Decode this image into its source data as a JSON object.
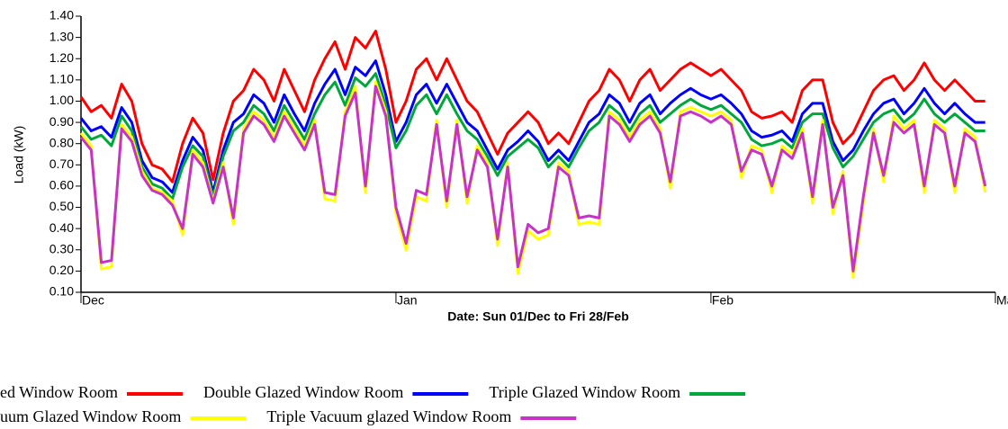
{
  "chart_data": {
    "type": "line",
    "ylabel": "Load (kW)",
    "xlabel": "Date: Sun 01/Dec to Fri 28/Feb",
    "x": [
      0,
      1,
      2,
      3,
      4,
      5,
      6,
      7,
      8,
      9,
      10,
      11,
      12,
      13,
      14,
      15,
      16,
      17,
      18,
      19,
      20,
      21,
      22,
      23,
      24,
      25,
      26,
      27,
      28,
      29,
      30,
      31,
      32,
      33,
      34,
      35,
      36,
      37,
      38,
      39,
      40,
      41,
      42,
      43,
      44,
      45,
      46,
      47,
      48,
      49,
      50,
      51,
      52,
      53,
      54,
      55,
      56,
      57,
      58,
      59,
      60,
      61,
      62,
      63,
      64,
      65,
      66,
      67,
      68,
      69,
      70,
      71,
      72,
      73,
      74,
      75,
      76,
      77,
      78,
      79,
      80,
      81,
      82,
      83,
      84,
      85,
      86,
      87,
      88,
      89
    ],
    "xlim": [
      0,
      90
    ],
    "xticks": [
      {
        "value": 0,
        "label": "Dec"
      },
      {
        "value": 31,
        "label": "Jan"
      },
      {
        "value": 62,
        "label": "Feb"
      },
      {
        "value": 90,
        "label": "Mar"
      }
    ],
    "ylim": [
      0.1,
      1.4
    ],
    "yticks": [
      {
        "value": 0.1,
        "label": "0.10"
      },
      {
        "value": 0.2,
        "label": "0.20"
      },
      {
        "value": 0.3,
        "label": "0.30"
      },
      {
        "value": 0.4,
        "label": "0.40"
      },
      {
        "value": 0.5,
        "label": "0.50"
      },
      {
        "value": 0.6,
        "label": "0.60"
      },
      {
        "value": 0.7,
        "label": "0.70"
      },
      {
        "value": 0.8,
        "label": "0.80"
      },
      {
        "value": 0.9,
        "label": "0.90"
      },
      {
        "value": 1.0,
        "label": "1.00"
      },
      {
        "value": 1.1,
        "label": "1.10"
      },
      {
        "value": 1.2,
        "label": "1.20"
      },
      {
        "value": 1.3,
        "label": "1.30"
      },
      {
        "value": 1.4,
        "label": "1.40"
      }
    ],
    "grid": false,
    "series": [
      {
        "name": "ed Window Room",
        "color": "#ff0000",
        "values": [
          1.02,
          0.95,
          0.98,
          0.92,
          1.08,
          1.0,
          0.8,
          0.7,
          0.68,
          0.62,
          0.8,
          0.92,
          0.85,
          0.63,
          0.85,
          1.0,
          1.05,
          1.15,
          1.1,
          1.0,
          1.15,
          1.05,
          0.95,
          1.1,
          1.2,
          1.28,
          1.15,
          1.3,
          1.25,
          1.33,
          1.15,
          0.9,
          1.0,
          1.15,
          1.2,
          1.1,
          1.2,
          1.1,
          1.0,
          0.95,
          0.85,
          0.75,
          0.85,
          0.9,
          0.95,
          0.9,
          0.8,
          0.85,
          0.8,
          0.9,
          1.0,
          1.05,
          1.15,
          1.1,
          1.0,
          1.1,
          1.15,
          1.05,
          1.1,
          1.15,
          1.18,
          1.15,
          1.12,
          1.15,
          1.1,
          1.05,
          0.95,
          0.92,
          0.93,
          0.95,
          0.9,
          1.05,
          1.1,
          1.1,
          0.9,
          0.8,
          0.85,
          0.95,
          1.05,
          1.1,
          1.12,
          1.05,
          1.1,
          1.18,
          1.1,
          1.05,
          1.1,
          1.05,
          1.0,
          1.0
        ]
      },
      {
        "name": "Double Glazed Window Room",
        "color": "#0000ff",
        "values": [
          0.92,
          0.86,
          0.88,
          0.83,
          0.97,
          0.9,
          0.72,
          0.64,
          0.62,
          0.57,
          0.72,
          0.83,
          0.77,
          0.57,
          0.77,
          0.9,
          0.94,
          1.03,
          0.99,
          0.9,
          1.03,
          0.94,
          0.86,
          0.99,
          1.08,
          1.15,
          1.03,
          1.16,
          1.12,
          1.19,
          1.03,
          0.81,
          0.9,
          1.03,
          1.08,
          0.99,
          1.08,
          0.99,
          0.9,
          0.86,
          0.77,
          0.68,
          0.77,
          0.81,
          0.86,
          0.81,
          0.72,
          0.77,
          0.72,
          0.81,
          0.9,
          0.94,
          1.03,
          0.99,
          0.9,
          0.99,
          1.03,
          0.94,
          0.99,
          1.03,
          1.06,
          1.03,
          1.01,
          1.03,
          0.99,
          0.94,
          0.86,
          0.83,
          0.84,
          0.86,
          0.81,
          0.94,
          0.99,
          0.99,
          0.81,
          0.72,
          0.77,
          0.86,
          0.94,
          0.99,
          1.01,
          0.94,
          0.99,
          1.06,
          0.99,
          0.94,
          0.99,
          0.94,
          0.9,
          0.9
        ]
      },
      {
        "name": "Triple Glazed Window Room",
        "color": "#00a83c",
        "values": [
          0.88,
          0.82,
          0.84,
          0.79,
          0.93,
          0.86,
          0.69,
          0.61,
          0.59,
          0.54,
          0.69,
          0.79,
          0.74,
          0.55,
          0.74,
          0.86,
          0.9,
          0.98,
          0.94,
          0.86,
          0.98,
          0.9,
          0.82,
          0.94,
          1.03,
          1.09,
          0.98,
          1.11,
          1.07,
          1.13,
          0.98,
          0.78,
          0.86,
          0.98,
          1.03,
          0.94,
          1.03,
          0.94,
          0.86,
          0.82,
          0.74,
          0.65,
          0.74,
          0.78,
          0.82,
          0.78,
          0.69,
          0.74,
          0.69,
          0.78,
          0.86,
          0.9,
          0.98,
          0.94,
          0.86,
          0.94,
          0.98,
          0.9,
          0.94,
          0.98,
          1.01,
          0.98,
          0.96,
          0.98,
          0.94,
          0.9,
          0.82,
          0.79,
          0.8,
          0.82,
          0.78,
          0.9,
          0.94,
          0.94,
          0.78,
          0.69,
          0.74,
          0.82,
          0.9,
          0.94,
          0.96,
          0.9,
          0.94,
          1.01,
          0.94,
          0.9,
          0.94,
          0.9,
          0.86,
          0.86
        ]
      },
      {
        "name": "uum Glazed Window Room",
        "color": "#ffff00",
        "values": [
          0.85,
          0.79,
          0.21,
          0.22,
          0.89,
          0.83,
          0.67,
          0.59,
          0.57,
          0.53,
          0.37,
          0.77,
          0.71,
          0.53,
          0.71,
          0.42,
          0.87,
          0.95,
          0.91,
          0.83,
          0.95,
          0.87,
          0.79,
          0.91,
          0.54,
          0.53,
          0.95,
          1.07,
          0.57,
          1.09,
          0.95,
          0.47,
          0.3,
          0.55,
          0.53,
          0.91,
          0.5,
          0.91,
          0.52,
          0.79,
          0.71,
          0.32,
          0.71,
          0.19,
          0.39,
          0.35,
          0.37,
          0.71,
          0.67,
          0.42,
          0.43,
          0.42,
          0.95,
          0.91,
          0.83,
          0.91,
          0.95,
          0.87,
          0.59,
          0.95,
          0.97,
          0.95,
          0.93,
          0.95,
          0.91,
          0.64,
          0.79,
          0.77,
          0.57,
          0.79,
          0.75,
          0.87,
          0.52,
          0.91,
          0.47,
          0.67,
          0.17,
          0.52,
          0.87,
          0.62,
          0.93,
          0.87,
          0.91,
          0.57,
          0.91,
          0.87,
          0.57,
          0.87,
          0.83,
          0.57
        ]
      },
      {
        "name": "Triple Vacuum glazed Window Room",
        "color": "#c832c8",
        "values": [
          0.83,
          0.77,
          0.24,
          0.25,
          0.87,
          0.81,
          0.65,
          0.58,
          0.56,
          0.51,
          0.4,
          0.75,
          0.69,
          0.52,
          0.69,
          0.45,
          0.85,
          0.93,
          0.89,
          0.81,
          0.93,
          0.85,
          0.77,
          0.89,
          0.57,
          0.56,
          0.93,
          1.04,
          0.6,
          1.07,
          0.93,
          0.5,
          0.33,
          0.58,
          0.56,
          0.89,
          0.53,
          0.89,
          0.55,
          0.77,
          0.69,
          0.35,
          0.69,
          0.22,
          0.42,
          0.38,
          0.4,
          0.69,
          0.65,
          0.45,
          0.46,
          0.45,
          0.93,
          0.89,
          0.81,
          0.89,
          0.93,
          0.85,
          0.62,
          0.93,
          0.95,
          0.93,
          0.9,
          0.93,
          0.89,
          0.67,
          0.77,
          0.75,
          0.6,
          0.77,
          0.73,
          0.85,
          0.55,
          0.89,
          0.5,
          0.65,
          0.2,
          0.55,
          0.85,
          0.65,
          0.9,
          0.85,
          0.89,
          0.6,
          0.89,
          0.85,
          0.6,
          0.85,
          0.81,
          0.6
        ]
      }
    ]
  }
}
